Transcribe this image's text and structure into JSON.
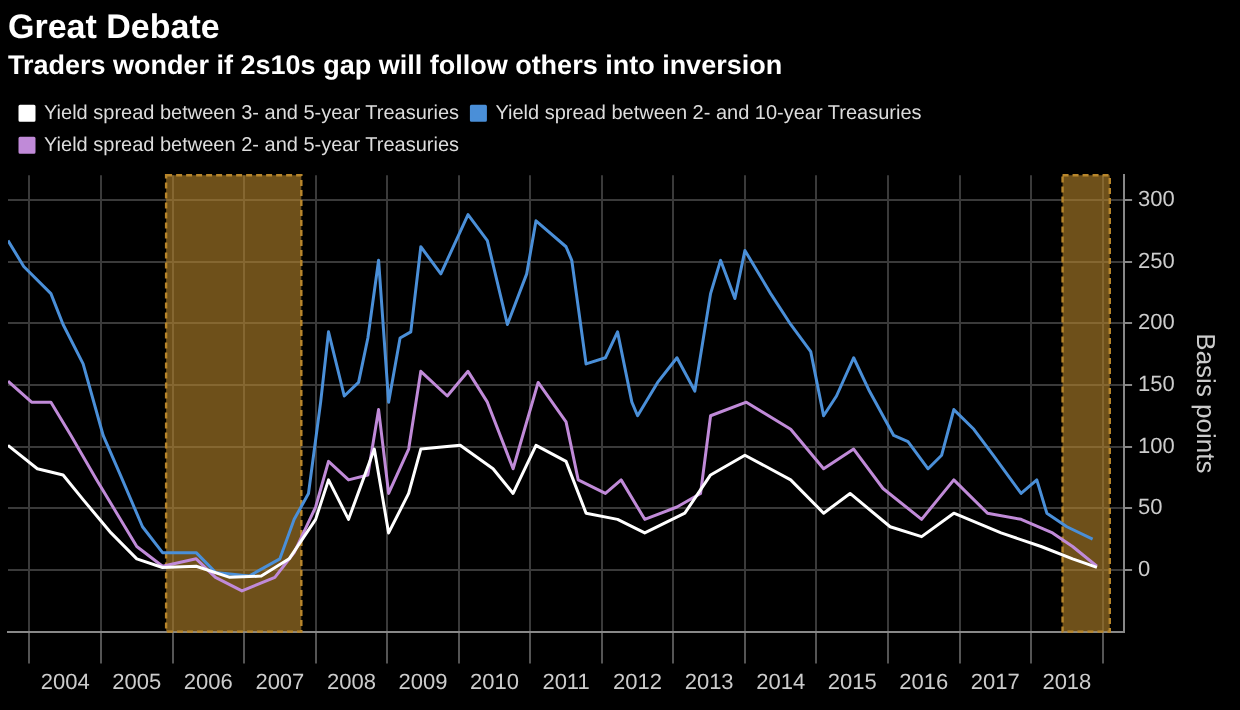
{
  "chart_data": {
    "type": "line",
    "title": "Great Debate",
    "subtitle": "Traders wonder if 2s10s gap will follow others into inversion",
    "ylabel": "Basis points",
    "series": [
      {
        "name": "Yield spread between 3- and 5-year Treasuries",
        "color": "#ffffff",
        "x": [
          2003.7,
          2004.11,
          2004.47,
          2004.75,
          2005.14,
          2005.5,
          2005.86,
          2006.33,
          2006.8,
          2007.24,
          2007.63,
          2008.0,
          2008.18,
          2008.46,
          2008.82,
          2009.02,
          2009.3,
          2009.47,
          2010.02,
          2010.48,
          2010.76,
          2011.08,
          2011.5,
          2011.78,
          2012.22,
          2012.6,
          2013.16,
          2013.52,
          2014.0,
          2014.64,
          2015.1,
          2015.47,
          2016.03,
          2016.47,
          2016.92,
          2017.58,
          2018.14,
          2018.58,
          2018.92
        ],
        "values": [
          101,
          82,
          77,
          57,
          30,
          9,
          2,
          3,
          -6,
          -5,
          9,
          41,
          73,
          41,
          98,
          30,
          62,
          98,
          101,
          82,
          62,
          101,
          88,
          46,
          41,
          30,
          46,
          77,
          93,
          73,
          46,
          62,
          35,
          27,
          46,
          30,
          19,
          9,
          2
        ]
      },
      {
        "name": "Yield spread between 2- and 10-year Treasuries",
        "color": "#4a8fd8",
        "x": [
          2003.7,
          2003.92,
          2004.3,
          2004.47,
          2004.75,
          2005.03,
          2005.27,
          2005.58,
          2005.86,
          2006.33,
          2006.6,
          2007.07,
          2007.5,
          2007.7,
          2007.9,
          2008.07,
          2008.18,
          2008.4,
          2008.6,
          2008.73,
          2008.88,
          2009.02,
          2009.18,
          2009.33,
          2009.47,
          2009.75,
          2010.13,
          2010.4,
          2010.68,
          2010.95,
          2011.08,
          2011.5,
          2011.58,
          2011.78,
          2012.05,
          2012.22,
          2012.42,
          2012.5,
          2012.78,
          2013.05,
          2013.3,
          2013.52,
          2013.66,
          2013.86,
          2014.0,
          2014.36,
          2014.64,
          2014.92,
          2015.1,
          2015.28,
          2015.52,
          2015.74,
          2016.08,
          2016.28,
          2016.56,
          2016.75,
          2016.92,
          2017.2,
          2017.47,
          2017.86,
          2018.08,
          2018.22,
          2018.5,
          2018.86
        ],
        "values": [
          267,
          246,
          224,
          199,
          167,
          109,
          77,
          35,
          14,
          14,
          -2,
          -5,
          9,
          41,
          62,
          136,
          193,
          141,
          152,
          188,
          251,
          136,
          188,
          193,
          262,
          240,
          288,
          267,
          199,
          240,
          283,
          262,
          251,
          167,
          172,
          193,
          136,
          125,
          152,
          172,
          145,
          224,
          251,
          220,
          259,
          224,
          199,
          177,
          125,
          141,
          172,
          145,
          109,
          104,
          82,
          93,
          130,
          114,
          93,
          62,
          73,
          46,
          35,
          25
        ]
      },
      {
        "name": "Yield spread between 2- and 5-year Treasuries",
        "color": "#c08ad8",
        "x": [
          2003.7,
          2004.03,
          2004.3,
          2004.58,
          2004.94,
          2005.22,
          2005.5,
          2005.86,
          2006.33,
          2006.6,
          2006.97,
          2007.43,
          2007.7,
          2008.0,
          2008.18,
          2008.46,
          2008.73,
          2008.88,
          2009.02,
          2009.3,
          2009.47,
          2009.84,
          2010.13,
          2010.4,
          2010.76,
          2011.11,
          2011.5,
          2011.67,
          2012.05,
          2012.27,
          2012.6,
          2013.05,
          2013.38,
          2013.52,
          2014.02,
          2014.64,
          2015.1,
          2015.52,
          2015.93,
          2016.47,
          2016.92,
          2017.39,
          2017.86,
          2018.3,
          2018.58,
          2018.92
        ],
        "values": [
          153,
          136,
          136,
          109,
          73,
          46,
          19,
          3,
          9,
          -6,
          -17,
          -6,
          14,
          51,
          88,
          73,
          77,
          130,
          62,
          98,
          161,
          141,
          161,
          136,
          82,
          152,
          120,
          73,
          62,
          73,
          41,
          51,
          62,
          125,
          136,
          114,
          82,
          98,
          66,
          41,
          73,
          46,
          41,
          30,
          19,
          3
        ]
      }
    ],
    "xlim": [
      2003.7,
      2019.3
    ],
    "xticks": [
      {
        "value": 2004,
        "label": null
      },
      {
        "value": 2004.5,
        "label": "2004"
      },
      {
        "value": 2005,
        "label": null
      },
      {
        "value": 2005.5,
        "label": "2005"
      },
      {
        "value": 2006,
        "label": null
      },
      {
        "value": 2006.5,
        "label": "2006"
      },
      {
        "value": 2007,
        "label": null
      },
      {
        "value": 2007.5,
        "label": "2007"
      },
      {
        "value": 2008,
        "label": null
      },
      {
        "value": 2008.5,
        "label": "2008"
      },
      {
        "value": 2009,
        "label": null
      },
      {
        "value": 2009.5,
        "label": "2009"
      },
      {
        "value": 2010,
        "label": null
      },
      {
        "value": 2010.5,
        "label": "2010"
      },
      {
        "value": 2011,
        "label": null
      },
      {
        "value": 2011.5,
        "label": "2011"
      },
      {
        "value": 2012,
        "label": null
      },
      {
        "value": 2012.5,
        "label": "2012"
      },
      {
        "value": 2013,
        "label": null
      },
      {
        "value": 2013.5,
        "label": "2013"
      },
      {
        "value": 2014,
        "label": null
      },
      {
        "value": 2014.5,
        "label": "2014"
      },
      {
        "value": 2015,
        "label": null
      },
      {
        "value": 2015.5,
        "label": "2015"
      },
      {
        "value": 2016,
        "label": null
      },
      {
        "value": 2016.5,
        "label": "2016"
      },
      {
        "value": 2017,
        "label": null
      },
      {
        "value": 2017.5,
        "label": "2017"
      },
      {
        "value": 2018,
        "label": null
      },
      {
        "value": 2018.5,
        "label": "2018"
      },
      {
        "value": 2019,
        "label": null
      }
    ],
    "ylim": [
      -50,
      320
    ],
    "yticks": [
      0,
      50,
      100,
      150,
      200,
      250,
      300
    ],
    "bands": [
      {
        "axis": "x",
        "from": 2005.91,
        "to": 2007.8,
        "color": "#b8862b"
      },
      {
        "axis": "x",
        "from": 2018.44,
        "to": 2019.1,
        "color": "#b8862b"
      }
    ],
    "grid": true,
    "legend": "top left"
  }
}
